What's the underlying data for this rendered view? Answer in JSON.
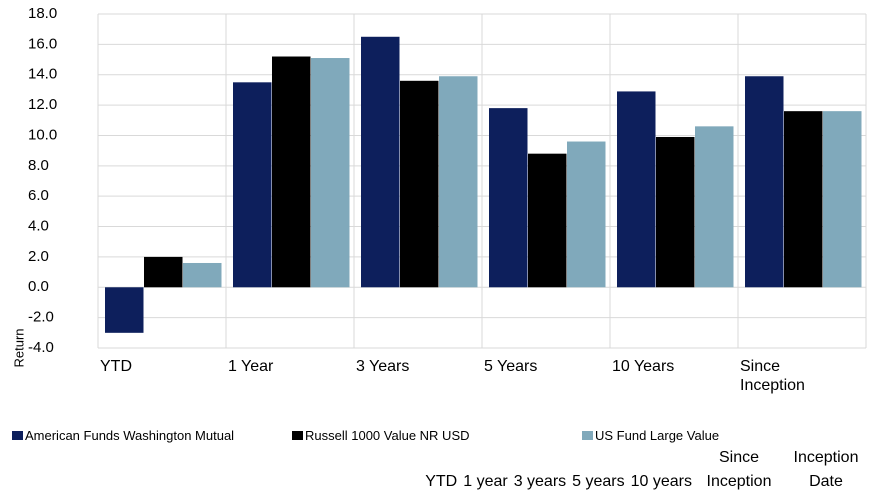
{
  "chart_data": {
    "type": "bar",
    "y_label": "Return",
    "categories": [
      "YTD",
      "1 Year",
      "3 Years",
      "5 Years",
      "10 Years",
      "Since Inception"
    ],
    "series": [
      {
        "name": "American Funds Washington Mutual",
        "color": "#0d1f5c",
        "values": [
          -3.0,
          13.5,
          16.5,
          11.8,
          12.9,
          13.9
        ]
      },
      {
        "name": "Russell 1000 Value NR USD",
        "color": "#000000",
        "values": [
          2.0,
          15.2,
          13.6,
          8.8,
          9.9,
          11.6
        ]
      },
      {
        "name": "US Fund Large Value",
        "color": "#80a9bb",
        "values": [
          1.6,
          15.1,
          13.9,
          9.6,
          10.6,
          11.6
        ]
      }
    ],
    "ylim": [
      -4,
      18
    ],
    "yticks": [
      {
        "value": -4,
        "label": "-4.0"
      },
      {
        "value": -2,
        "label": "-2.0"
      },
      {
        "value": 0,
        "label": "0.0"
      },
      {
        "value": 2,
        "label": "2.0"
      },
      {
        "value": 4,
        "label": "4.0"
      },
      {
        "value": 6,
        "label": "6.0"
      },
      {
        "value": 8,
        "label": "8.0"
      },
      {
        "value": 10,
        "label": "10.0"
      },
      {
        "value": 12,
        "label": "12.0"
      },
      {
        "value": 14,
        "label": "14.0"
      },
      {
        "value": 16,
        "label": "16.0"
      },
      {
        "value": 18,
        "label": "18.0"
      }
    ],
    "grid": true
  },
  "table": {
    "columns": [
      "YTD",
      "1 year",
      "3 years",
      "5 years",
      "10 years",
      "Since Inception",
      "Inception Date"
    ]
  }
}
